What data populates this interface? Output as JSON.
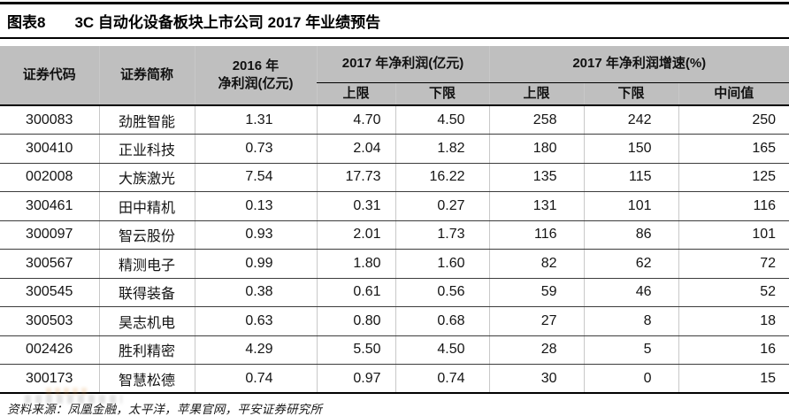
{
  "figure": {
    "label": "图表8",
    "title": "3C 自动化设备板块上市公司 2017 年业绩预告"
  },
  "table": {
    "headers": {
      "code": "证券代码",
      "name": "证券简称",
      "profit2016_line1": "2016 年",
      "profit2016_line2": "净利润(亿元)",
      "profit2017_group": "2017 年净利润(亿元)",
      "growth2017_group": "2017 年净利润增速(%)",
      "upper_limit": "上限",
      "lower_limit": "下限",
      "upper_limit_growth": "上限",
      "lower_limit_growth": "下限",
      "mid_value": "中间值"
    },
    "rows": [
      {
        "code": "300083",
        "name": "劲胜智能",
        "p2016": "1.31",
        "p2017_up": "4.70",
        "p2017_low": "4.50",
        "g_up": "258",
        "g_low": "242",
        "g_mid": "250"
      },
      {
        "code": "300410",
        "name": "正业科技",
        "p2016": "0.73",
        "p2017_up": "2.04",
        "p2017_low": "1.82",
        "g_up": "180",
        "g_low": "150",
        "g_mid": "165"
      },
      {
        "code": "002008",
        "name": "大族激光",
        "p2016": "7.54",
        "p2017_up": "17.73",
        "p2017_low": "16.22",
        "g_up": "135",
        "g_low": "115",
        "g_mid": "125"
      },
      {
        "code": "300461",
        "name": "田中精机",
        "p2016": "0.13",
        "p2017_up": "0.31",
        "p2017_low": "0.27",
        "g_up": "131",
        "g_low": "101",
        "g_mid": "116"
      },
      {
        "code": "300097",
        "name": "智云股份",
        "p2016": "0.93",
        "p2017_up": "2.01",
        "p2017_low": "1.73",
        "g_up": "116",
        "g_low": "86",
        "g_mid": "101"
      },
      {
        "code": "300567",
        "name": "精测电子",
        "p2016": "0.99",
        "p2017_up": "1.80",
        "p2017_low": "1.60",
        "g_up": "82",
        "g_low": "62",
        "g_mid": "72"
      },
      {
        "code": "300545",
        "name": "联得装备",
        "p2016": "0.38",
        "p2017_up": "0.61",
        "p2017_low": "0.56",
        "g_up": "59",
        "g_low": "46",
        "g_mid": "52"
      },
      {
        "code": "300503",
        "name": "昊志机电",
        "p2016": "0.63",
        "p2017_up": "0.80",
        "p2017_low": "0.68",
        "g_up": "27",
        "g_low": "8",
        "g_mid": "18"
      },
      {
        "code": "002426",
        "name": "胜利精密",
        "p2016": "4.29",
        "p2017_up": "5.50",
        "p2017_low": "4.50",
        "g_up": "28",
        "g_low": "5",
        "g_mid": "16"
      },
      {
        "code": "300173",
        "name": "智慧松德",
        "p2016": "0.74",
        "p2017_up": "0.97",
        "p2017_low": "0.74",
        "g_up": "30",
        "g_low": "0",
        "g_mid": "15"
      }
    ]
  },
  "source": "资料来源：凤凰金融，太平洋，苹果官网，平安证券研究所",
  "colors": {
    "header_bg": "#bfbfbf",
    "rule": "#000000",
    "grid_vertical": "#c8c8c8",
    "row_separator": "#3c3c3c",
    "text": "#111111"
  }
}
